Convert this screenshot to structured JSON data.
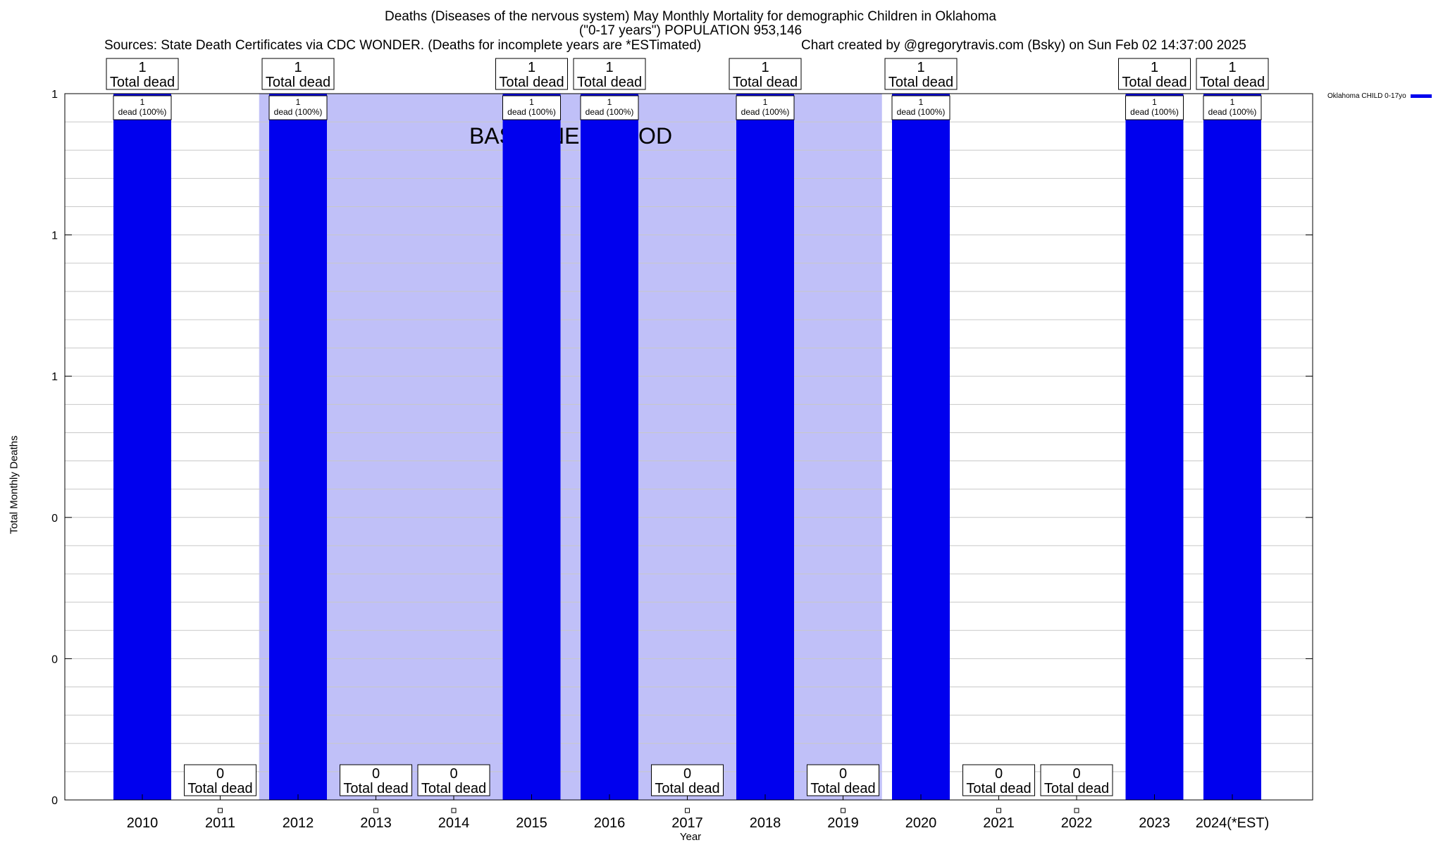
{
  "chart_data": {
    "type": "bar",
    "title": "Deaths (Diseases of the nervous system) May Monthly Mortality for demographic Children in Oklahoma",
    "subtitle": "(\"0-17 years\") POPULATION 953,146",
    "sources": "Sources: State Death Certificates via CDC WONDER. (Deaths for incomplete years are *ESTimated)",
    "credit": "Chart created by @gregorytravis.com (Bsky) on Sun Feb 02 14:37:00 2025",
    "xlabel": "Year",
    "ylabel": "Total Monthly Deaths",
    "categories": [
      "2010",
      "2011",
      "2012",
      "2013",
      "2014",
      "2015",
      "2016",
      "2017",
      "2018",
      "2019",
      "2020",
      "2021",
      "2022",
      "2023",
      "2024(*EST)"
    ],
    "series": [
      {
        "name": "Oklahoma CHILD 0-17yo",
        "color": "#0000ee",
        "values": [
          1,
          0,
          1,
          0,
          0,
          1,
          1,
          0,
          1,
          0,
          1,
          0,
          0,
          1,
          1
        ]
      }
    ],
    "total_labels": [
      "1\nTotal dead",
      "0\nTotal dead",
      "1\nTotal dead",
      "0\nTotal dead",
      "0\nTotal dead",
      "1\nTotal dead",
      "1\nTotal dead",
      "0\nTotal dead",
      "1\nTotal dead",
      "0\nTotal dead",
      "1\nTotal dead",
      "0\nTotal dead",
      "0\nTotal dead",
      "1\nTotal dead",
      "1\nTotal dead"
    ],
    "bar_labels": [
      "1\ndead (100%)",
      "",
      "1\ndead (100%)",
      "",
      "",
      "1\ndead (100%)",
      "1\ndead (100%)",
      "",
      "1\ndead (100%)",
      "",
      "1\ndead (100%)",
      "",
      "",
      "1\ndead (100%)",
      "1\ndead (100%)"
    ],
    "ylim": [
      0,
      1
    ],
    "ytick_values": [
      0,
      0.2,
      0.4,
      0.6,
      0.8,
      1
    ],
    "ytick_labels": [
      "0",
      "0",
      "0",
      "1",
      "1",
      "1"
    ],
    "baseline": {
      "label": "BASELINE PERIOD",
      "from": "2012",
      "to": "2019",
      "color": "#c0c0f8"
    },
    "grid": true,
    "legend_position": "top-right"
  }
}
